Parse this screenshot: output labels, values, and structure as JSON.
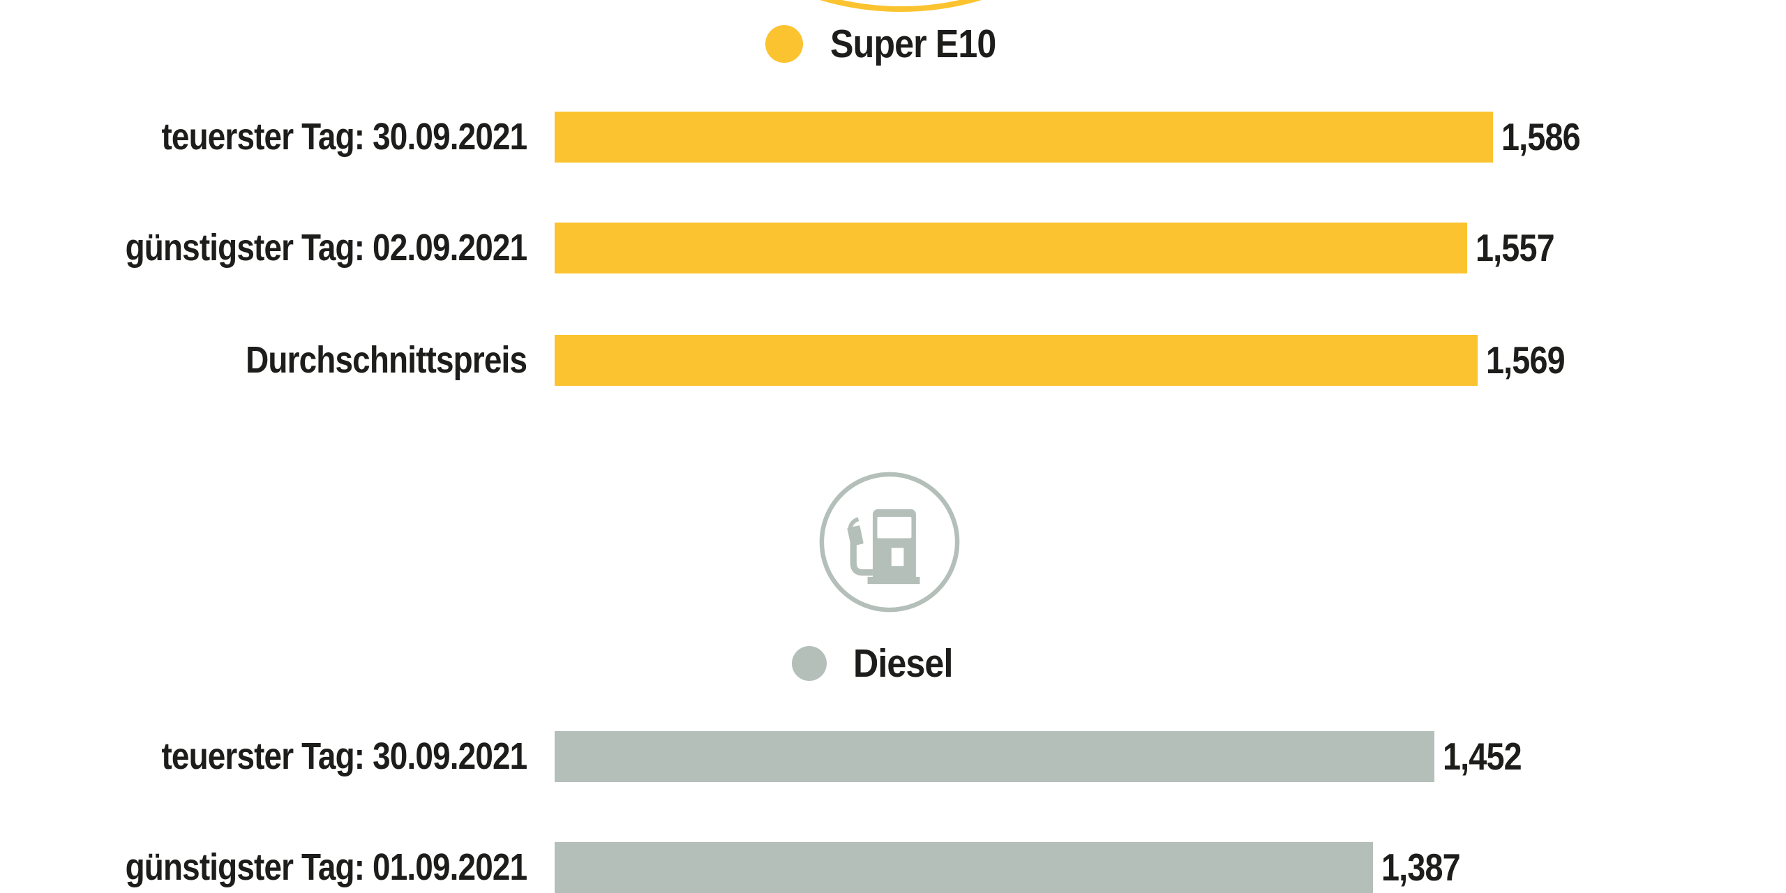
{
  "colors": {
    "super_e10_yellow": "#fbc32f",
    "diesel_gray": "#b4bfba",
    "text": "#1d1d1b",
    "background": "#ffffff"
  },
  "icons": {
    "top_cropped_icon": "fuel-pump-circle-icon-cropped-arc",
    "diesel_icon": "fuel-pump-circle-icon",
    "legend_marker": "filled-dot"
  },
  "chart_data": {
    "type": "bar",
    "orientation": "horizontal",
    "grid": false,
    "legend_position": "above-each-series",
    "value_format": "comma-decimal, e.g. 1,586",
    "series": [
      {
        "name": "Super E10",
        "color": "#fbc32f",
        "icon": "fuel-pump-circle-icon (cropped at top edge)",
        "bars": [
          {
            "label": "teuerster Tag: 30.09.2021",
            "value": 1.586,
            "value_label": "1,586"
          },
          {
            "label": "günstigster Tag: 02.09.2021",
            "value": 1.557,
            "value_label": "1,557"
          },
          {
            "label": "Durchschnittspreis",
            "value": 1.569,
            "value_label": "1,569"
          }
        ]
      },
      {
        "name": "Diesel",
        "color": "#b4bfba",
        "icon": "fuel-pump-circle-icon",
        "bars": [
          {
            "label": "teuerster Tag: 30.09.2021",
            "value": 1.452,
            "value_label": "1,452"
          },
          {
            "label": "günstigster Tag: 01.09.2021",
            "value": 1.387,
            "value_label": "1,387"
          }
        ]
      }
    ]
  }
}
